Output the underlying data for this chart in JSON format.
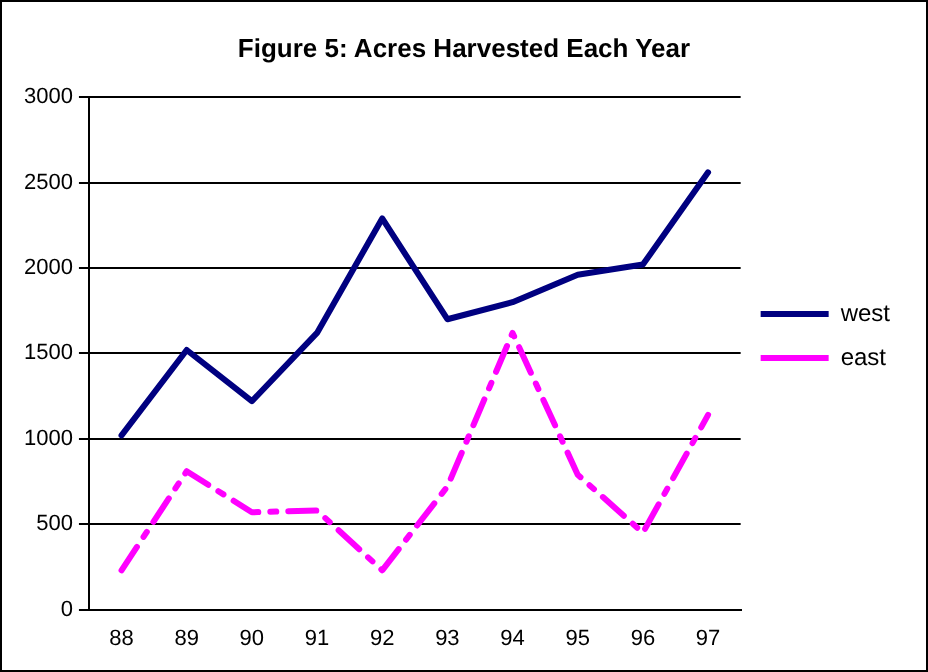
{
  "chart_data": {
    "type": "line",
    "title": "Figure 5: Acres Harvested Each Year",
    "categories": [
      "88",
      "89",
      "90",
      "91",
      "92",
      "93",
      "94",
      "95",
      "96",
      "97"
    ],
    "series": [
      {
        "name": "west",
        "color": "#000080",
        "line_style": "solid",
        "values": [
          1020,
          1520,
          1220,
          1620,
          2290,
          1700,
          1800,
          1960,
          2020,
          2560
        ]
      },
      {
        "name": "east",
        "color": "#ff00ff",
        "line_style": "dashed",
        "values": [
          230,
          810,
          570,
          580,
          230,
          720,
          1620,
          790,
          450,
          1140
        ]
      }
    ],
    "ylim": [
      0,
      3000
    ],
    "yticks": [
      0,
      500,
      1000,
      1500,
      2000,
      2500,
      3000
    ],
    "grid": "y",
    "legend": "right",
    "marker": "none"
  }
}
